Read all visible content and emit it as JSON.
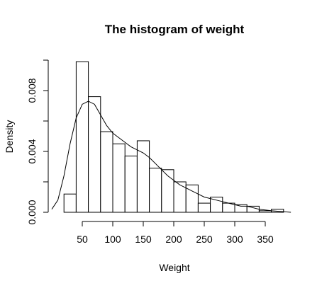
{
  "chart_data": {
    "type": "bar",
    "title": "The histogram of weight",
    "xlabel": "Weight",
    "ylabel": "Density",
    "xlim": [
      0,
      400
    ],
    "ylim": [
      0,
      0.01
    ],
    "x_ticks": [
      50,
      100,
      150,
      200,
      250,
      300,
      350
    ],
    "y_ticks": [
      0.0,
      0.004,
      0.008
    ],
    "y_tick_labels": [
      "0.000",
      "0.004",
      "0.008"
    ],
    "y_minor_ticks": [
      0.002,
      0.006,
      0.01
    ],
    "bin_width": 20,
    "bins": [
      {
        "start": 20,
        "end": 40,
        "density": 0.0012
      },
      {
        "start": 40,
        "end": 60,
        "density": 0.0099
      },
      {
        "start": 60,
        "end": 80,
        "density": 0.0076
      },
      {
        "start": 80,
        "end": 100,
        "density": 0.0053
      },
      {
        "start": 100,
        "end": 120,
        "density": 0.0045
      },
      {
        "start": 120,
        "end": 140,
        "density": 0.0037
      },
      {
        "start": 140,
        "end": 160,
        "density": 0.0047
      },
      {
        "start": 160,
        "end": 180,
        "density": 0.0029
      },
      {
        "start": 180,
        "end": 200,
        "density": 0.0028
      },
      {
        "start": 200,
        "end": 220,
        "density": 0.002
      },
      {
        "start": 220,
        "end": 240,
        "density": 0.0018
      },
      {
        "start": 240,
        "end": 260,
        "density": 0.0006
      },
      {
        "start": 260,
        "end": 280,
        "density": 0.001
      },
      {
        "start": 280,
        "end": 300,
        "density": 0.0006
      },
      {
        "start": 300,
        "end": 320,
        "density": 0.0005
      },
      {
        "start": 320,
        "end": 340,
        "density": 0.0004
      },
      {
        "start": 340,
        "end": 360,
        "density": 0.0001
      },
      {
        "start": 360,
        "end": 380,
        "density": 0.0002
      }
    ],
    "density_curve": [
      {
        "x": 0,
        "y": 0.0002
      },
      {
        "x": 10,
        "y": 0.0008
      },
      {
        "x": 20,
        "y": 0.0024
      },
      {
        "x": 30,
        "y": 0.0045
      },
      {
        "x": 40,
        "y": 0.0062
      },
      {
        "x": 50,
        "y": 0.0071
      },
      {
        "x": 60,
        "y": 0.0073
      },
      {
        "x": 70,
        "y": 0.0071
      },
      {
        "x": 80,
        "y": 0.0064
      },
      {
        "x": 90,
        "y": 0.0057
      },
      {
        "x": 100,
        "y": 0.0052
      },
      {
        "x": 110,
        "y": 0.0049
      },
      {
        "x": 120,
        "y": 0.0046
      },
      {
        "x": 130,
        "y": 0.0043
      },
      {
        "x": 140,
        "y": 0.0041
      },
      {
        "x": 150,
        "y": 0.0039
      },
      {
        "x": 160,
        "y": 0.0036
      },
      {
        "x": 170,
        "y": 0.0032
      },
      {
        "x": 180,
        "y": 0.0028
      },
      {
        "x": 190,
        "y": 0.0024
      },
      {
        "x": 200,
        "y": 0.0021
      },
      {
        "x": 210,
        "y": 0.0018
      },
      {
        "x": 220,
        "y": 0.0016
      },
      {
        "x": 230,
        "y": 0.0014
      },
      {
        "x": 240,
        "y": 0.0012
      },
      {
        "x": 250,
        "y": 0.001
      },
      {
        "x": 260,
        "y": 0.0009
      },
      {
        "x": 270,
        "y": 0.0008
      },
      {
        "x": 280,
        "y": 0.0007
      },
      {
        "x": 290,
        "y": 0.0006
      },
      {
        "x": 300,
        "y": 0.0005
      },
      {
        "x": 310,
        "y": 0.0004
      },
      {
        "x": 320,
        "y": 0.0004
      },
      {
        "x": 330,
        "y": 0.0003
      },
      {
        "x": 340,
        "y": 0.0002
      },
      {
        "x": 350,
        "y": 0.00015
      },
      {
        "x": 360,
        "y": 0.0001
      },
      {
        "x": 370,
        "y": 7e-05
      },
      {
        "x": 380,
        "y": 4e-05
      },
      {
        "x": 392,
        "y": 0.0
      }
    ],
    "grid": false,
    "legend": "none"
  }
}
